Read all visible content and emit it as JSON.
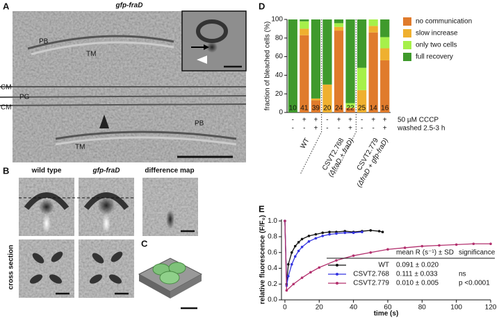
{
  "figure": {
    "labels": [
      "A",
      "B",
      "C",
      "D",
      "E"
    ],
    "a_title": "gfp-fraD",
    "a_annotations": [
      "PB",
      "TM",
      "CM",
      "PG",
      "CM",
      "PB",
      "TM"
    ],
    "b_titles": [
      "wild type",
      "gfp-fraD",
      "difference map"
    ],
    "b_row_label": "cross section"
  },
  "chart_data": [
    {
      "type": "stacked_bar",
      "ylabel": "fraction of bleached cells (%)",
      "ylim": [
        0,
        100
      ],
      "yticks": [
        0,
        20,
        40,
        60,
        80,
        100
      ],
      "categories": [
        null,
        null,
        null,
        null,
        null,
        null,
        null,
        null,
        null
      ],
      "n": [
        10,
        41,
        39,
        20,
        24,
        22,
        25,
        14,
        16
      ],
      "series": [
        {
          "name": "no communication",
          "color": "#e07b2c",
          "values": [
            0,
            83,
            13,
            0,
            88,
            5,
            0,
            86,
            56
          ]
        },
        {
          "name": "slow increase",
          "color": "#efb02f",
          "values": [
            0,
            7,
            2,
            30,
            4,
            0,
            24,
            7,
            13
          ]
        },
        {
          "name": "only two cells",
          "color": "#a6f04a",
          "values": [
            0,
            8,
            0,
            0,
            4,
            5,
            24,
            7,
            12
          ]
        },
        {
          "name": "full recovery",
          "color": "#3f9a2c",
          "values": [
            100,
            2,
            85,
            70,
            4,
            90,
            52,
            0,
            19
          ]
        }
      ],
      "conditions": [
        {
          "label": "50 µM CCCP",
          "marks": [
            "-",
            "+",
            "+",
            "-",
            "+",
            "+",
            "-",
            "+",
            "+"
          ]
        },
        {
          "label": "washed 2.5-3 h",
          "marks": [
            "-",
            "-",
            "+",
            "-",
            "-",
            "+",
            "-",
            "-",
            "+"
          ]
        }
      ],
      "groups": [
        {
          "label": "WT"
        },
        {
          "label": "CSVT2.768",
          "sublabel": "(ΔfraD + fraD)"
        },
        {
          "label": "CSVT2.779",
          "sublabel": "(ΔfraD + gfp-fraD)"
        }
      ]
    },
    {
      "type": "line",
      "xlabel": "time (s)",
      "ylabel": "relative fluorescence (F/F₀)",
      "xlim": [
        -2,
        120
      ],
      "xticks": [
        0,
        20,
        40,
        60,
        80,
        100,
        120
      ],
      "ylim": [
        0,
        1.02
      ],
      "yticks": [
        {
          "value": 0,
          "label": "0.0"
        },
        0.2,
        0.4,
        0.6,
        0.8,
        {
          "value": 1,
          "label": "1.0"
        }
      ],
      "series": [
        {
          "name": "WT",
          "color": "#111111",
          "x": [
            0,
            1,
            2,
            4,
            6,
            8,
            10,
            14,
            18,
            22,
            26,
            30,
            35,
            40,
            45,
            50,
            55,
            57
          ],
          "values": [
            1.0,
            0.2,
            0.45,
            0.6,
            0.68,
            0.73,
            0.77,
            0.81,
            0.83,
            0.85,
            0.86,
            0.86,
            0.87,
            0.86,
            0.87,
            0.88,
            0.87,
            0.86
          ]
        },
        {
          "name": "CSVT2.768",
          "color": "#3434e0",
          "x": [
            0,
            1,
            2,
            4,
            6,
            8,
            10,
            14,
            18,
            22,
            26,
            30,
            35,
            40,
            45
          ],
          "values": [
            1.0,
            0.18,
            0.3,
            0.45,
            0.55,
            0.62,
            0.67,
            0.74,
            0.78,
            0.81,
            0.83,
            0.84,
            0.85,
            0.85,
            0.86
          ]
        },
        {
          "name": "CSVT2.779",
          "color": "#b3306e",
          "x": [
            0,
            1,
            5,
            10,
            15,
            20,
            30,
            40,
            50,
            60,
            70,
            80,
            90,
            100,
            110,
            120
          ],
          "values": [
            1.0,
            0.12,
            0.2,
            0.28,
            0.35,
            0.41,
            0.5,
            0.56,
            0.6,
            0.64,
            0.66,
            0.68,
            0.69,
            0.7,
            0.71,
            0.71
          ]
        }
      ],
      "table": {
        "columns": [
          "mean R (s⁻¹) ± SD",
          "significance"
        ],
        "rows": [
          {
            "mean": "0.091 ± 0.020"
          },
          {
            "mean": "0.111 ± 0.033",
            "significance": "ns"
          },
          {
            "mean": "0.010 ± 0.005",
            "significance": "p <0.0001"
          }
        ]
      }
    }
  ]
}
